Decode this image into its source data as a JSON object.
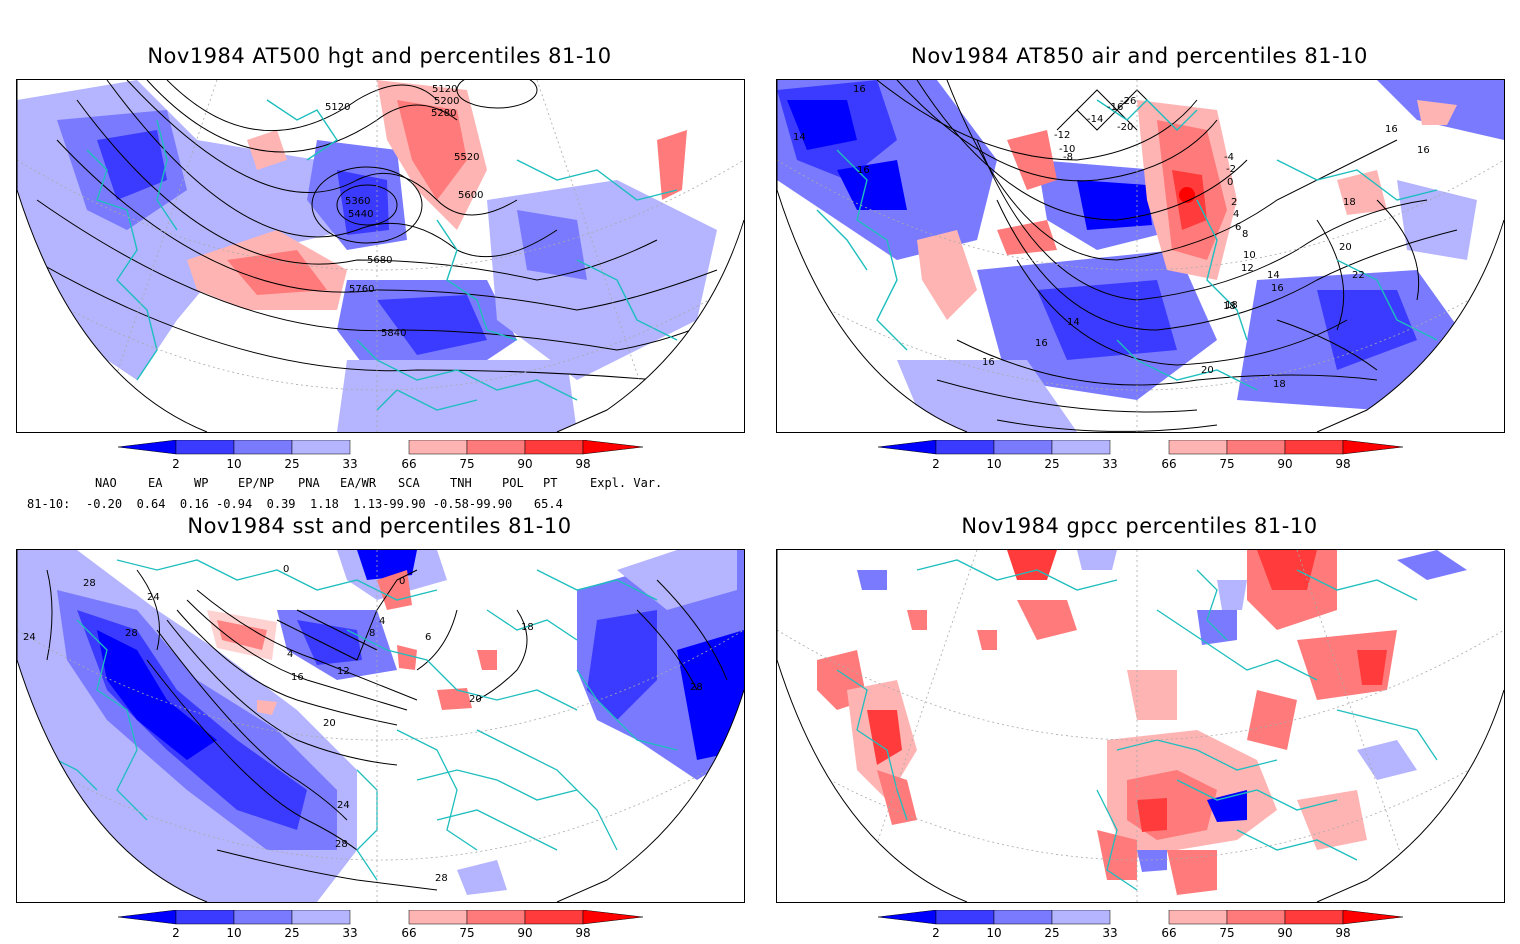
{
  "panels": [
    {
      "title": "Nov1984 AT500 hgt and percentiles 81-10",
      "contour_labels": [
        "5120",
        "5120",
        "5200",
        "5280",
        "5360",
        "5440",
        "5520",
        "5600",
        "5680",
        "5760",
        "5840"
      ]
    },
    {
      "title": "Nov1984 AT850 air and percentiles 81-10",
      "contour_labels": [
        "16",
        "14",
        "16",
        "-10",
        "-12",
        "-14",
        "-16",
        "-20",
        "-26",
        "-8",
        "-4",
        "-2",
        "0",
        "2",
        "4",
        "6",
        "8",
        "10",
        "12",
        "14",
        "16",
        "16",
        "18",
        "18",
        "20",
        "22",
        "16",
        "14",
        "16",
        "18",
        "20",
        "18",
        "16"
      ]
    },
    {
      "title": "Nov1984 sst and percentiles 81-10",
      "contour_labels": [
        "28",
        "28",
        "24",
        "0",
        "0",
        "4",
        "8",
        "4",
        "12",
        "16",
        "20",
        "24",
        "28",
        "20",
        "28",
        "28",
        "18",
        "6",
        "24"
      ]
    },
    {
      "title": "Nov1984 gpcc percentiles 81-10",
      "contour_labels": []
    }
  ],
  "colorbar": {
    "labels": [
      "2",
      "10",
      "25",
      "33",
      "66",
      "75",
      "90",
      "98"
    ],
    "colors": {
      "blue_dark": "#0000ff",
      "blue_mid": "#3b3bff",
      "blue_light": "#7a7aff",
      "blue_pale": "#b4b4ff",
      "red_pale": "#ffb4b4",
      "red_light": "#ff7a7a",
      "red_mid": "#ff3b3b",
      "red_dark": "#ff0000"
    }
  },
  "indices": {
    "headers": [
      "NAO",
      "EA",
      "WP",
      "EP/NP",
      "PNA",
      "EA/WR",
      "SCA",
      "TNH",
      "POL",
      "PT",
      "Expl. Var."
    ],
    "row_label": "81-10:",
    "values": "-0.20  0.64  0.16 -0.94  0.39  1.18  1.13-99.90 -0.58-99.90   65.4"
  },
  "colors": {
    "coast": "#1ebebe",
    "contour": "#000000",
    "grid": "#aaaaaa"
  }
}
